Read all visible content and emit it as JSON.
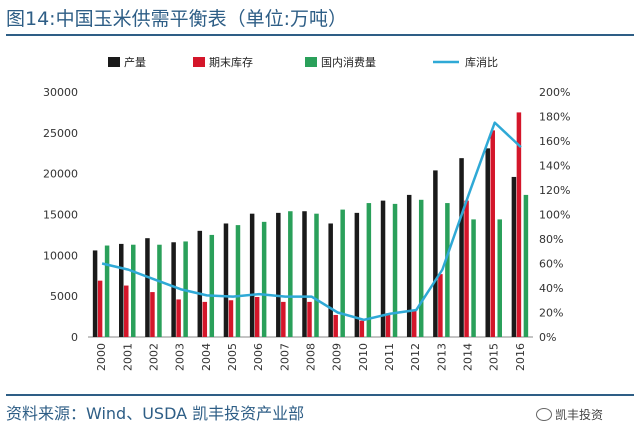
{
  "title": "图14:中国玉米供需平衡表（单位:万吨）",
  "source": "资料来源：Wind、USDA 凯丰投资产业部",
  "watermark": "凯丰投资",
  "colors": {
    "production": "#1a1a1a",
    "stock": "#d4162a",
    "consumption": "#2aa05a",
    "ratio": "#2fa9d6",
    "text_blue": "#2e5e86"
  },
  "chart_data": {
    "type": "bar",
    "categories": [
      "2000",
      "2001",
      "2002",
      "2003",
      "2004",
      "2005",
      "2006",
      "2007",
      "2008",
      "2009",
      "2010",
      "2011",
      "2012",
      "2013",
      "2014",
      "2015",
      "2016"
    ],
    "series": [
      {
        "name": "产量",
        "type": "bar",
        "axis": "left",
        "values": [
          10600,
          11400,
          12100,
          11600,
          13000,
          13900,
          15100,
          15200,
          15400,
          13900,
          15200,
          16700,
          17400,
          20400,
          21900,
          23100,
          19600
        ]
      },
      {
        "name": "期末库存",
        "type": "bar",
        "axis": "left",
        "values": [
          6900,
          6300,
          5500,
          4600,
          4300,
          4500,
          4900,
          4300,
          4300,
          2700,
          2000,
          2900,
          3200,
          7700,
          16700,
          25300,
          27500
        ]
      },
      {
        "name": "国内消费量",
        "type": "bar",
        "axis": "left",
        "values": [
          11200,
          11300,
          11300,
          11700,
          12500,
          13700,
          14100,
          15400,
          15100,
          15600,
          16400,
          16300,
          16800,
          16400,
          14400,
          14400,
          17400
        ]
      },
      {
        "name": "库消比",
        "type": "line",
        "axis": "right",
        "values": [
          0.6,
          0.55,
          0.47,
          0.39,
          0.34,
          0.33,
          0.35,
          0.33,
          0.33,
          0.2,
          0.14,
          0.19,
          0.22,
          0.55,
          1.16,
          1.75,
          1.55
        ]
      }
    ],
    "y_left": {
      "min": 0,
      "max": 30000,
      "ticks": [
        0,
        5000,
        10000,
        15000,
        20000,
        25000,
        30000
      ]
    },
    "y_right": {
      "min": 0,
      "max": 2,
      "ticks": [
        "0%",
        "20%",
        "40%",
        "60%",
        "80%",
        "100%",
        "120%",
        "140%",
        "160%",
        "180%",
        "200%"
      ]
    },
    "legend_position": "top",
    "grid": false
  }
}
